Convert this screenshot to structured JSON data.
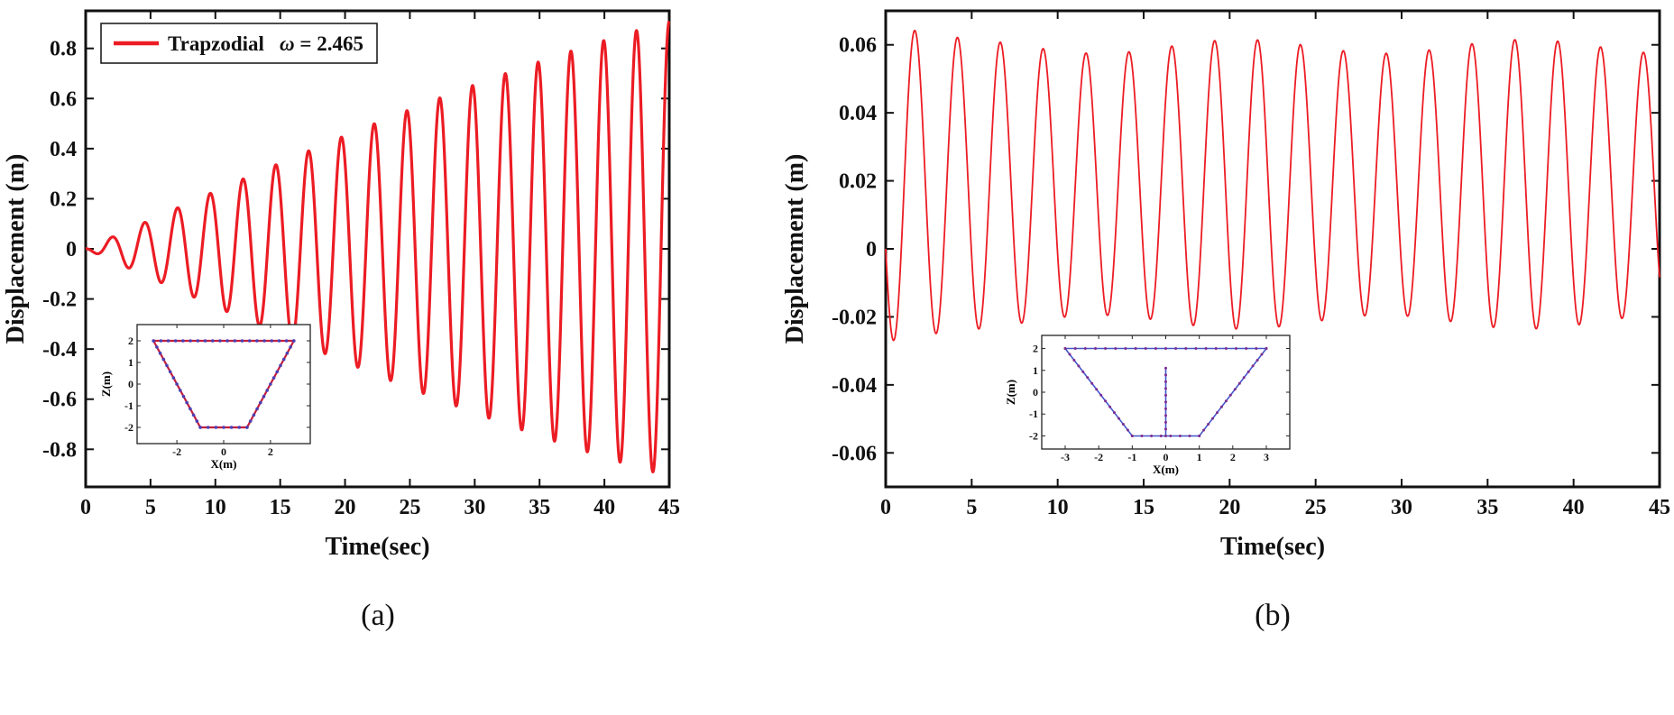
{
  "figure": {
    "captions": [
      "(a)",
      "(b)"
    ],
    "background": "#ffffff"
  },
  "chart_data": [
    {
      "id": "panel-a",
      "type": "line",
      "title": "",
      "xlabel": "Time(sec)",
      "ylabel": "Displacement (m)",
      "xlim": [
        0,
        45
      ],
      "ylim": [
        -0.95,
        0.95
      ],
      "xticks": [
        0,
        5,
        10,
        15,
        20,
        25,
        30,
        35,
        40,
        45
      ],
      "xticklabels": [
        "0",
        "5",
        "10",
        "15",
        "20",
        "25",
        "30",
        "35",
        "40",
        "45"
      ],
      "yticks": [
        -0.8,
        -0.6,
        -0.4,
        -0.2,
        0,
        0.2,
        0.4,
        0.6,
        0.8
      ],
      "yticklabels": [
        "-0.8",
        "-0.6",
        "-0.4",
        "-0.2",
        "0",
        "0.2",
        "0.4",
        "0.6",
        "0.8"
      ],
      "grid": false,
      "legend": {
        "position": "top-left",
        "entries": [
          {
            "label": "Trapzodial",
            "annotation": "ω = 2.465",
            "color": "#ec1c24"
          }
        ]
      },
      "series": [
        {
          "name": "trapezoidal-tank-sloshing",
          "color": "#ec1c24",
          "width": 3.2,
          "signal": {
            "form": "beat",
            "A": 1.16,
            "env_omega": 0.02,
            "carrier_omega": 2.485,
            "phase": 1.27
          },
          "description": "Resonant sloshing displacement at excitation ω = 2.465 rad/s; oscillation period ≈ 2.5 s; amplitude grows nearly linearly from 0 at t = 0 to ≈ 0.9 m at t = 45 s.",
          "envelope_samples": {
            "t": [
              0,
              5,
              10,
              15,
              20,
              25,
              30,
              35,
              40,
              45
            ],
            "amplitude": [
              0,
              0.12,
              0.23,
              0.34,
              0.45,
              0.56,
              0.66,
              0.75,
              0.83,
              0.91
            ]
          }
        }
      ],
      "inset": {
        "xlabel": "X(m)",
        "ylabel": "Z(m)",
        "xlim": [
          -3.7,
          3.7
        ],
        "ylim": [
          -2.75,
          2.75
        ],
        "xticks": [
          -2,
          0,
          2
        ],
        "xticklabels": [
          "-2",
          "0",
          "2"
        ],
        "yticks": [
          -2,
          -1,
          0,
          1,
          2
        ],
        "yticklabels": [
          "-2",
          "-1",
          "0",
          "1",
          "2"
        ],
        "shapes": [
          {
            "name": "trapezoidal-tank-outline",
            "points": [
              [
                -3,
                2
              ],
              [
                3,
                2
              ],
              [
                1,
                -2
              ],
              [
                -1,
                -2
              ],
              [
                -3,
                2
              ]
            ],
            "line_color": "#c41e3a",
            "marker_color": "#4b3fb4",
            "marker_spacing": 0.32,
            "marker_size": 1.8,
            "line_width": 2.2
          }
        ]
      }
    },
    {
      "id": "panel-b",
      "type": "line",
      "title": "",
      "xlabel": "Time(sec)",
      "ylabel": "Displacement (m)",
      "xlim": [
        0,
        45
      ],
      "ylim": [
        -0.07,
        0.07
      ],
      "xticks": [
        0,
        5,
        10,
        15,
        20,
        25,
        30,
        35,
        40,
        45
      ],
      "xticklabels": [
        "0",
        "5",
        "10",
        "15",
        "20",
        "25",
        "30",
        "35",
        "40",
        "45"
      ],
      "yticks": [
        -0.06,
        -0.04,
        -0.02,
        0,
        0.02,
        0.04,
        0.06
      ],
      "yticklabels": [
        "-0.06",
        "-0.04",
        "-0.02",
        "0",
        "0.02",
        "0.04",
        "0.06"
      ],
      "grid": false,
      "legend": null,
      "series": [
        {
          "name": "baffled-tank-sloshing",
          "color": "#ec1c24",
          "width": 1.8,
          "signal": {
            "form": "offset",
            "mean": 0.019,
            "quad": 0.0358,
            "omega": 2.52,
            "ramp": 1.2,
            "amp_mod": 0.05,
            "mod_omega": 0.38,
            "trans": 0.04,
            "trans_decay": 0.9
          },
          "description": "Sloshing displacement for baffled trapezoidal tank: after a short transient dipping to ≈ −0.035 m, it oscillates about ≈ +0.02 m with peaks ≈ +0.06 m and troughs ≈ −0.02 m, period ≈ 2.5 s.",
          "steady_state": {
            "mean": 0.019,
            "amplitude": 0.04,
            "peak": 0.06,
            "trough": -0.022,
            "period_sec": 2.5
          }
        }
      ],
      "inset": {
        "xlabel": "X(m)",
        "ylabel": "Z(m)",
        "xlim": [
          -3.7,
          3.7
        ],
        "ylim": [
          -2.6,
          2.6
        ],
        "xticks": [
          -3,
          -2,
          -1,
          0,
          1,
          2,
          3
        ],
        "xticklabels": [
          "-3",
          "-2",
          "-1",
          "0",
          "1",
          "2",
          "3"
        ],
        "yticks": [
          -2,
          -1,
          0,
          1,
          2
        ],
        "yticklabels": [
          "-2",
          "-1",
          "0",
          "1",
          "2"
        ],
        "shapes": [
          {
            "name": "trapezoidal-tank-outline",
            "points": [
              [
                -3,
                2
              ],
              [
                3,
                2
              ],
              [
                1,
                -2
              ],
              [
                -1,
                -2
              ],
              [
                -3,
                2
              ]
            ],
            "line_color": "#4455cc",
            "marker_color": "#7d2e8d",
            "marker_spacing": 0.3,
            "marker_size": 1.5,
            "line_width": 1.6
          },
          {
            "name": "vertical-baffle",
            "points": [
              [
                0,
                -2
              ],
              [
                0,
                1.1
              ]
            ],
            "line_color": "#4455cc",
            "marker_color": "#7d2e8d",
            "marker_spacing": 0.3,
            "marker_size": 1.5,
            "line_width": 1.6
          }
        ]
      }
    }
  ]
}
